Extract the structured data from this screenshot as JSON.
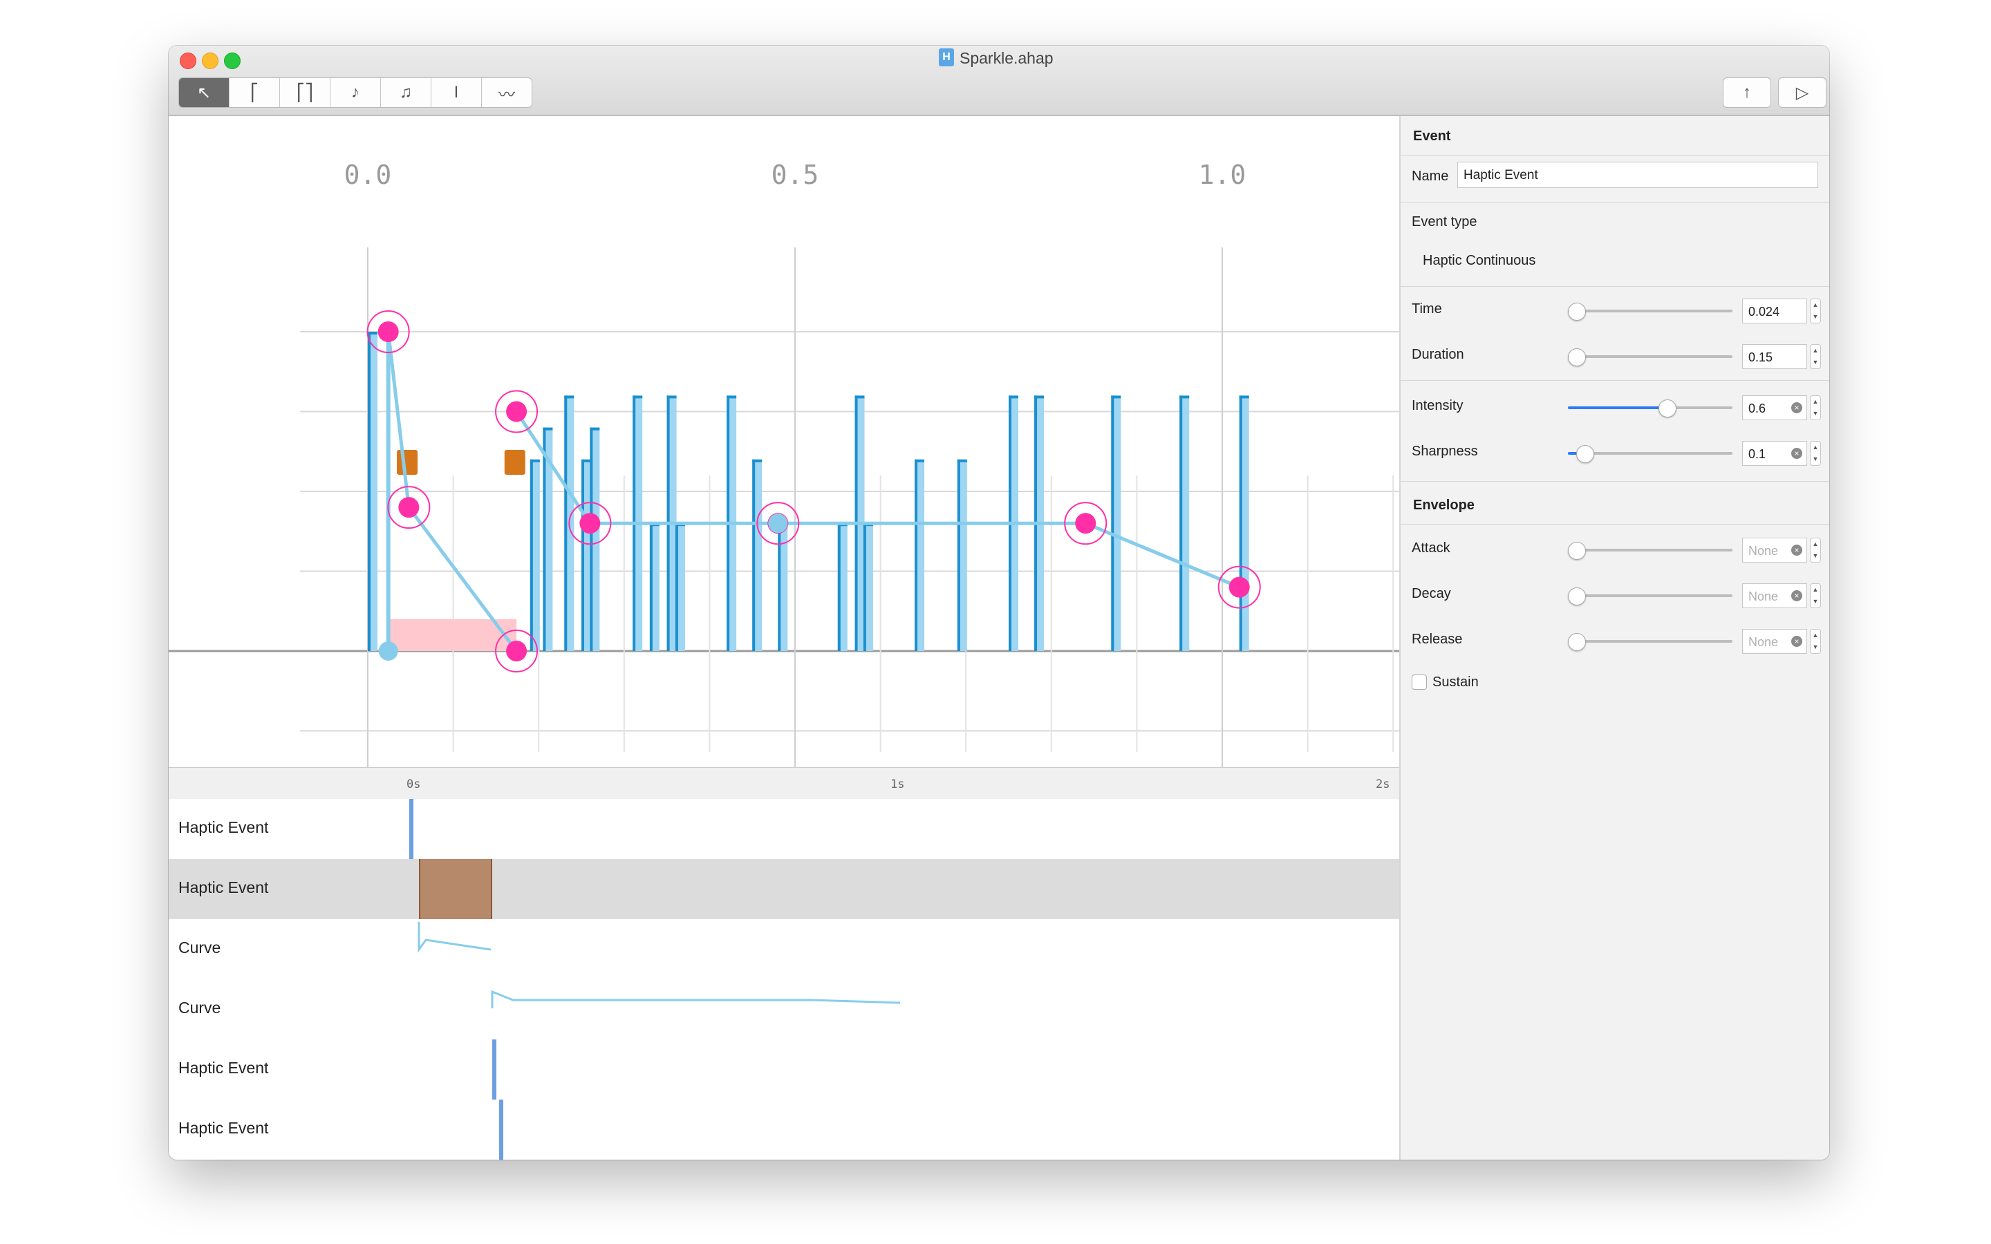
{
  "window": {
    "title": "Sparkle.ahap",
    "doc_icon": "H"
  },
  "toolbar": {
    "tools": [
      {
        "name": "pointer-tool",
        "glyph": "↖"
      },
      {
        "name": "transient-tool",
        "glyph": "⎡"
      },
      {
        "name": "continuous-tool",
        "glyph": "⎡⎤"
      },
      {
        "name": "audio-tool",
        "glyph": "♪"
      },
      {
        "name": "audio-continuous-tool",
        "glyph": "♫"
      },
      {
        "name": "text-tool",
        "glyph": "I"
      },
      {
        "name": "curve-tool",
        "glyph": "〰"
      }
    ],
    "share_glyph": "↑",
    "play_glyph": "▷"
  },
  "editor": {
    "axis_labels": [
      "0.0",
      "0.5",
      "1.0"
    ],
    "colors": {
      "bar_light": "#9fd6f2",
      "bar_dark": "#1a8fcf",
      "point": "#ff2fa8",
      "line": "#87cdeb",
      "sustain": "#ffc8ce",
      "marker": "#d6761a"
    }
  },
  "chart_data": {
    "type": "bar",
    "xlabel": "",
    "ylabel": "",
    "xlim": [
      -0.04,
      1.21
    ],
    "ylim": [
      -0.5,
      1.0
    ],
    "x_ticks": [
      "0.0",
      "0.5",
      "1.0"
    ],
    "events": [
      {
        "time": 0.0,
        "intensity": 1.0
      },
      {
        "time": 0.19,
        "intensity": 0.6
      },
      {
        "time": 0.205,
        "intensity": 0.7
      },
      {
        "time": 0.23,
        "intensity": 0.8
      },
      {
        "time": 0.25,
        "intensity": 0.6
      },
      {
        "time": 0.26,
        "intensity": 0.7
      },
      {
        "time": 0.31,
        "intensity": 0.8
      },
      {
        "time": 0.33,
        "intensity": 0.4
      },
      {
        "time": 0.35,
        "intensity": 0.8
      },
      {
        "time": 0.36,
        "intensity": 0.4
      },
      {
        "time": 0.42,
        "intensity": 0.8
      },
      {
        "time": 0.45,
        "intensity": 0.6
      },
      {
        "time": 0.48,
        "intensity": 0.4
      },
      {
        "time": 0.55,
        "intensity": 0.4
      },
      {
        "time": 0.57,
        "intensity": 0.8
      },
      {
        "time": 0.58,
        "intensity": 0.4
      },
      {
        "time": 0.64,
        "intensity": 0.6
      },
      {
        "time": 0.69,
        "intensity": 0.6
      },
      {
        "time": 0.75,
        "intensity": 0.8
      },
      {
        "time": 0.78,
        "intensity": 0.8
      },
      {
        "time": 0.87,
        "intensity": 0.8
      },
      {
        "time": 0.95,
        "intensity": 0.8
      },
      {
        "time": 1.02,
        "intensity": 0.8
      }
    ],
    "curves": [
      {
        "name": "intensity",
        "points": [
          [
            0.024,
            1.0
          ],
          [
            0.048,
            0.45
          ],
          [
            0.174,
            0.0
          ]
        ]
      },
      {
        "name": "parameter",
        "points": [
          [
            0.174,
            0.75
          ],
          [
            0.26,
            0.4
          ],
          [
            0.48,
            0.4
          ],
          [
            0.84,
            0.4
          ],
          [
            1.02,
            0.2
          ]
        ]
      }
    ]
  },
  "timeline": {
    "ruler": [
      "0s",
      "1s",
      "2s"
    ],
    "tracks": [
      {
        "label": "Haptic Event"
      },
      {
        "label": "Haptic Event"
      },
      {
        "label": "Curve"
      },
      {
        "label": "Curve"
      },
      {
        "label": "Haptic Event"
      },
      {
        "label": "Haptic Event"
      }
    ],
    "selected_block_color": "#b5896a"
  },
  "inspector": {
    "section_event": "Event",
    "name_label": "Name",
    "name_value": "Haptic Event",
    "event_type_label": "Event type",
    "event_type_value": "Haptic Continuous",
    "time": {
      "label": "Time",
      "value": "0.024",
      "level": 0.0
    },
    "duration": {
      "label": "Duration",
      "value": "0.15",
      "level": 0.02
    },
    "intensity": {
      "label": "Intensity",
      "value": "0.6",
      "level": 0.6
    },
    "sharpness": {
      "label": "Sharpness",
      "value": "0.1",
      "level": 0.1
    },
    "section_envelope": "Envelope",
    "attack": {
      "label": "Attack",
      "placeholder": "None",
      "level": 0.0
    },
    "decay": {
      "label": "Decay",
      "placeholder": "None",
      "level": 0.0
    },
    "release": {
      "label": "Release",
      "placeholder": "None",
      "level": 0.0
    },
    "sustain_label": "Sustain",
    "sustain_checked": false
  }
}
